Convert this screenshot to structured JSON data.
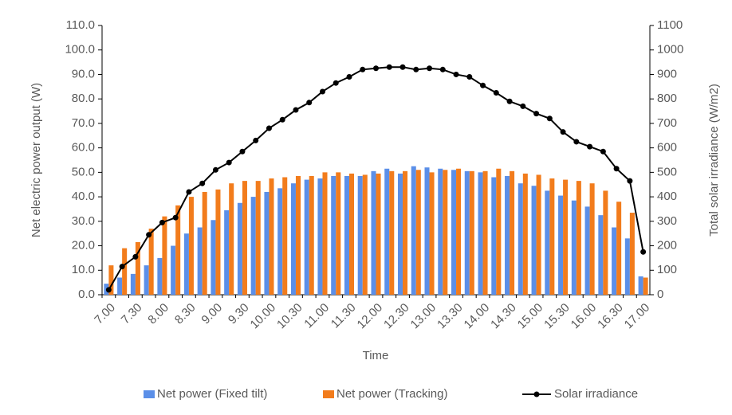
{
  "chart_data": {
    "type": "bar",
    "x_label": "Time",
    "y_label": "Net electric power output (W)",
    "y2_label": "Total solar irradiance (W/m2)",
    "categories": [
      "7.00",
      null,
      "7.30",
      null,
      "8.00",
      null,
      "8.30",
      null,
      "9.00",
      null,
      "9.30",
      null,
      "10.00",
      null,
      "10.30",
      null,
      "11.00",
      null,
      "11.30",
      null,
      "12.00",
      null,
      "12.30",
      null,
      "13.00",
      null,
      "13.30",
      null,
      "14.00",
      null,
      "14.30",
      null,
      "15.00",
      null,
      "15.30",
      null,
      "16.00",
      null,
      "16.30",
      null,
      "17.00"
    ],
    "series": [
      {
        "name": "Net power (Fixed tilt)",
        "color": "#5b8fe8",
        "values": [
          4.5,
          7,
          8.5,
          12,
          15,
          20,
          25,
          27.5,
          30.5,
          34.5,
          37.5,
          40,
          42,
          43.5,
          45.5,
          47,
          47.5,
          48.5,
          48.5,
          48.5,
          50.5,
          51.5,
          49.5,
          52.5,
          52,
          51.5,
          51,
          50.5,
          50,
          48,
          48.5,
          45.5,
          44.5,
          42.5,
          40.5,
          38.5,
          36,
          32.5,
          27.5,
          23,
          7.5
        ]
      },
      {
        "name": "Net power (Tracking)",
        "color": "#f27c1c",
        "values": [
          12,
          19,
          21.5,
          27,
          32,
          36.5,
          40,
          42,
          43,
          45.5,
          46.5,
          46.5,
          47.5,
          48,
          48.5,
          48.5,
          50,
          50,
          49.5,
          49,
          49.5,
          50.5,
          50.5,
          51,
          50,
          51,
          51.5,
          50.5,
          50.5,
          51.5,
          50.5,
          49.5,
          49,
          47.5,
          47,
          46.5,
          45.5,
          42.5,
          38,
          33.5,
          7
        ]
      },
      {
        "name": "Solar irradiance",
        "color": "#000000",
        "type": "line",
        "axis": "y2",
        "values": [
          20,
          115,
          155,
          245,
          295,
          315,
          420,
          455,
          510,
          540,
          585,
          630,
          680,
          715,
          755,
          785,
          830,
          865,
          890,
          920,
          925,
          930,
          930,
          920,
          925,
          920,
          900,
          890,
          855,
          825,
          790,
          770,
          740,
          720,
          665,
          625,
          605,
          585,
          515,
          465,
          175
        ]
      }
    ],
    "ylim": [
      0,
      110
    ],
    "yticks": [
      {
        "value": 0,
        "label": "0.0"
      },
      {
        "value": 10,
        "label": "10.0"
      },
      {
        "value": 20,
        "label": "20.0"
      },
      {
        "value": 30,
        "label": "30.0"
      },
      {
        "value": 40,
        "label": "40.0"
      },
      {
        "value": 50,
        "label": "50.0"
      },
      {
        "value": 60,
        "label": "60.0"
      },
      {
        "value": 70,
        "label": "70.0"
      },
      {
        "value": 80,
        "label": "80.0"
      },
      {
        "value": 90,
        "label": "90.0"
      },
      {
        "value": 100,
        "label": "100.0"
      },
      {
        "value": 110,
        "label": "110.0"
      }
    ],
    "y2lim": [
      0,
      1100
    ],
    "y2ticks": [
      0,
      100,
      200,
      300,
      400,
      500,
      600,
      700,
      800,
      900,
      1000,
      1100
    ],
    "legend": "bottom"
  }
}
